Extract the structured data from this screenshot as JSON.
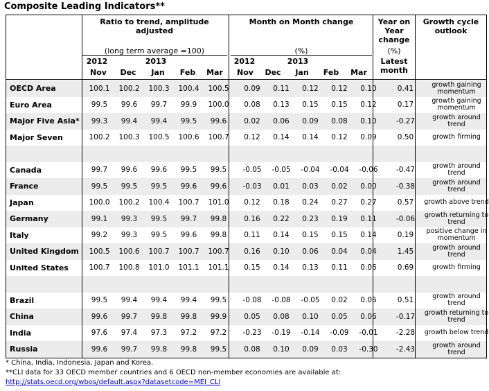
{
  "title": "Composite Leading Indicators**",
  "header": {
    "ratio_title": "Ratio to trend, amplitude adjusted",
    "ratio_note": "(long term average =100)",
    "mom_title": "Month on Month change",
    "mom_unit": "(%)",
    "yoy_line1": "Year on",
    "yoy_line2": "Year",
    "yoy_line3": "change",
    "yoy_unit": "(%)",
    "outlook_line1": "Growth cycle",
    "outlook_line2": "outlook",
    "year_2012": "2012",
    "year_2013": "2013",
    "latest_line1": "Latest",
    "latest_line2": "month",
    "months": [
      "Nov",
      "Dec",
      "Jan",
      "Feb",
      "Mar"
    ]
  },
  "rows": [
    {
      "name": "OECD Area",
      "ratio": [
        "100.1",
        "100.2",
        "100.3",
        "100.4",
        "100.5"
      ],
      "mom": [
        "0.09",
        "0.11",
        "0.12",
        "0.12",
        "0.10"
      ],
      "yoy": "0.41",
      "outlook": "growth gaining momentum"
    },
    {
      "name": "Euro Area",
      "ratio": [
        "99.5",
        "99.6",
        "99.7",
        "99.9",
        "100.0"
      ],
      "mom": [
        "0.08",
        "0.13",
        "0.15",
        "0.15",
        "0.12"
      ],
      "yoy": "0.17",
      "outlook": "growth gaining momentum"
    },
    {
      "name": "Major Five Asia*",
      "ratio": [
        "99.3",
        "99.4",
        "99.4",
        "99.5",
        "99.6"
      ],
      "mom": [
        "0.02",
        "0.06",
        "0.09",
        "0.08",
        "0.10"
      ],
      "yoy": "-0.27",
      "outlook": "growth around trend"
    },
    {
      "name": "Major Seven",
      "ratio": [
        "100.2",
        "100.3",
        "100.5",
        "100.6",
        "100.7"
      ],
      "mom": [
        "0.12",
        "0.14",
        "0.14",
        "0.12",
        "0.09"
      ],
      "yoy": "0.50",
      "outlook": "growth firming"
    },
    {
      "name": "Canada",
      "ratio": [
        "99.7",
        "99.6",
        "99.6",
        "99.5",
        "99.5"
      ],
      "mom": [
        "-0.05",
        "-0.05",
        "-0.04",
        "-0.04",
        "-0.06"
      ],
      "yoy": "-0.47",
      "outlook": "growth around trend"
    },
    {
      "name": "France",
      "ratio": [
        "99.5",
        "99.5",
        "99.5",
        "99.6",
        "99.6"
      ],
      "mom": [
        "-0.03",
        "0.01",
        "0.03",
        "0.02",
        "0.00"
      ],
      "yoy": "-0.38",
      "outlook": "growth around trend"
    },
    {
      "name": "Japan",
      "ratio": [
        "100.0",
        "100.2",
        "100.4",
        "100.7",
        "101.0"
      ],
      "mom": [
        "0.12",
        "0.18",
        "0.24",
        "0.27",
        "0.27"
      ],
      "yoy": "0.57",
      "outlook": "growth above trend"
    },
    {
      "name": "Germany",
      "ratio": [
        "99.1",
        "99.3",
        "99.5",
        "99.7",
        "99.8"
      ],
      "mom": [
        "0.16",
        "0.22",
        "0.23",
        "0.19",
        "0.11"
      ],
      "yoy": "-0.06",
      "outlook": "growth returning to trend"
    },
    {
      "name": "Italy",
      "ratio": [
        "99.2",
        "99.3",
        "99.5",
        "99.6",
        "99.8"
      ],
      "mom": [
        "0.11",
        "0.14",
        "0.15",
        "0.15",
        "0.14"
      ],
      "yoy": "0.19",
      "outlook": "positive change in momentum"
    },
    {
      "name": "United Kingdom",
      "ratio": [
        "100.5",
        "100.6",
        "100.7",
        "100.7",
        "100.7"
      ],
      "mom": [
        "0.16",
        "0.10",
        "0.06",
        "0.04",
        "0.04"
      ],
      "yoy": "1.45",
      "outlook": "growth around trend"
    },
    {
      "name": "United States",
      "ratio": [
        "100.7",
        "100.8",
        "101.0",
        "101.1",
        "101.1"
      ],
      "mom": [
        "0.15",
        "0.14",
        "0.13",
        "0.11",
        "0.06"
      ],
      "yoy": "0.69",
      "outlook": "growth firming"
    },
    {
      "name": "Brazil",
      "ratio": [
        "99.5",
        "99.4",
        "99.4",
        "99.4",
        "99.5"
      ],
      "mom": [
        "-0.08",
        "-0.08",
        "-0.05",
        "0.02",
        "0.06"
      ],
      "yoy": "0.51",
      "outlook": "growth around trend"
    },
    {
      "name": "China",
      "ratio": [
        "99.6",
        "99.7",
        "99.8",
        "99.8",
        "99.9"
      ],
      "mom": [
        "0.05",
        "0.08",
        "0.10",
        "0.05",
        "0.06"
      ],
      "yoy": "-0.17",
      "outlook": "growth returning to trend"
    },
    {
      "name": "India",
      "ratio": [
        "97.6",
        "97.4",
        "97.3",
        "97.2",
        "97.2"
      ],
      "mom": [
        "-0.23",
        "-0.19",
        "-0.14",
        "-0.09",
        "-0.01"
      ],
      "yoy": "-2.28",
      "outlook": "growth below trend"
    },
    {
      "name": "Russia",
      "ratio": [
        "99.6",
        "99.7",
        "99.8",
        "99.8",
        "99.5"
      ],
      "mom": [
        "0.08",
        "0.10",
        "0.09",
        "0.03",
        "-0.30"
      ],
      "yoy": "-2.43",
      "outlook": "growth around trend"
    }
  ],
  "footnotes": {
    "note1": "*  China, India, Indonesia, Japan and Korea.",
    "note2": "**CLI data for 33 OECD member countries and 6 OECD non-member economies are available at:",
    "link": "http://stats.oecd.org/wbos/default.aspx?datasetcode=MEI_CLI"
  }
}
